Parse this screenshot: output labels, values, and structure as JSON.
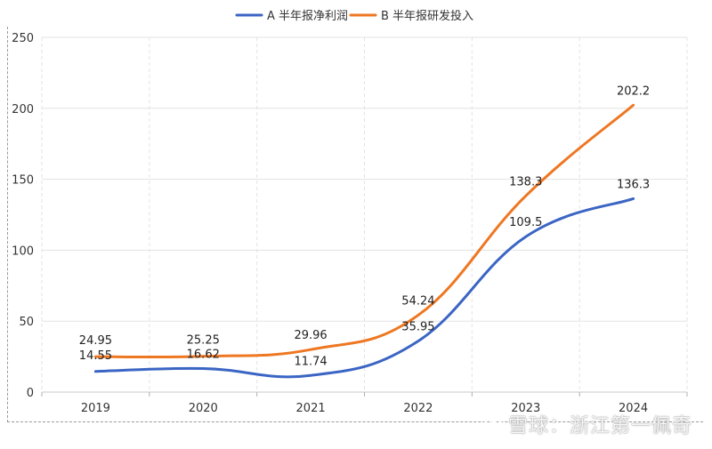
{
  "chart_data": {
    "type": "line",
    "categories": [
      "2019",
      "2020",
      "2021",
      "2022",
      "2023",
      "2024"
    ],
    "series": [
      {
        "name": "A 半年报净利润",
        "values": [
          14.55,
          16.62,
          11.74,
          35.95,
          109.5,
          136.3
        ],
        "color": "#3b65c4",
        "labels": [
          "14.55",
          "16.62",
          "11.74",
          "35.95",
          "109.5",
          "136.3"
        ]
      },
      {
        "name": "B 半年报研发投入",
        "values": [
          24.95,
          25.25,
          29.96,
          54.24,
          138.3,
          202.2
        ],
        "color": "#ee7722",
        "labels": [
          "24.95",
          "25.25",
          "29.96",
          "54.24",
          "138.3",
          "202.2"
        ]
      }
    ],
    "ylim": [
      0,
      250
    ],
    "yticks": [
      "0",
      "50",
      "100",
      "150",
      "200",
      "250"
    ],
    "grid": true,
    "legend_position": "top-center",
    "smooth": true
  },
  "watermark": {
    "text": "雪球：浙江第一佩奇",
    "icon": "snowball-logo-icon"
  }
}
